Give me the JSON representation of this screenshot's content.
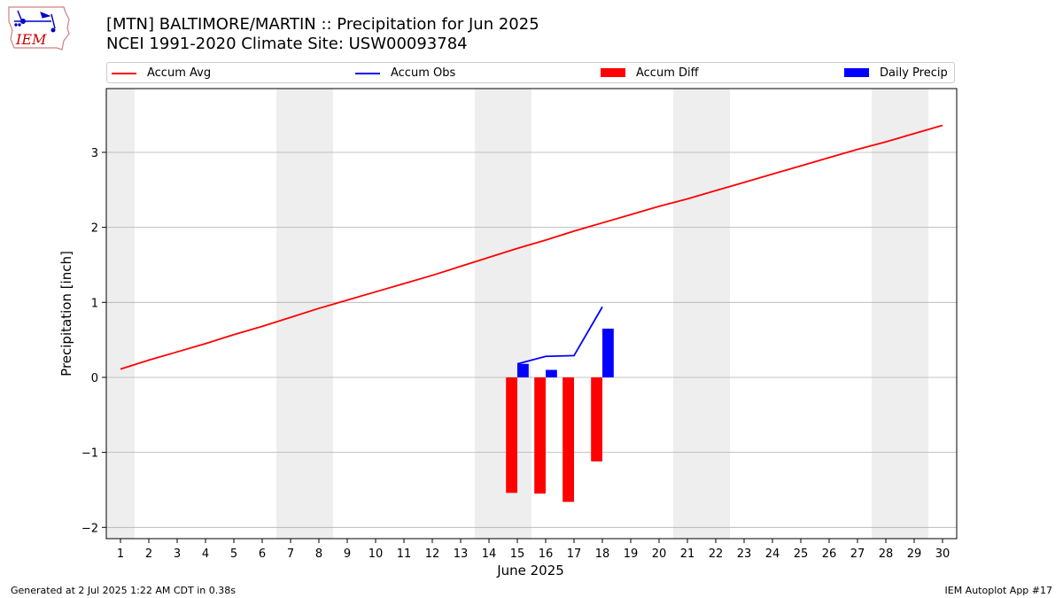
{
  "header": {
    "title_line1": "[MTN] BALTIMORE/MARTIN :: Precipitation for Jun 2025",
    "title_line2": "NCEI 1991-2020 Climate Site: USW00093784"
  },
  "logo": {
    "text": "IEM",
    "icon": "iem-iowa-logo"
  },
  "footer": {
    "left": "Generated at 2 Jul 2025 1:22 AM CDT in 0.38s",
    "right": "IEM Autoplot App #17"
  },
  "colors": {
    "avg": "#ff0000",
    "obs": "#0000ff",
    "diff": "#ff0000",
    "daily": "#0000ff",
    "weekend": "#eeeeee",
    "grid": "#b0b0b0"
  },
  "chart_data": {
    "type": "bar",
    "xlabel": "June 2025",
    "ylabel": "Precipitation [inch]",
    "xlim": [
      0.5,
      30.5
    ],
    "ylim": [
      -2.15,
      3.85
    ],
    "yticks": [
      -2,
      -1,
      0,
      1,
      2,
      3
    ],
    "ytick_labels": [
      "−2",
      "−1",
      "0",
      "1",
      "2",
      "3"
    ],
    "x_ticks": [
      1,
      2,
      3,
      4,
      5,
      6,
      7,
      8,
      9,
      10,
      11,
      12,
      13,
      14,
      15,
      16,
      17,
      18,
      19,
      20,
      21,
      22,
      23,
      24,
      25,
      26,
      27,
      28,
      29,
      30
    ],
    "x_tick_labels": [
      "1",
      "2",
      "3",
      "4",
      "5",
      "6",
      "7",
      "8",
      "9",
      "10",
      "11",
      "12",
      "13",
      "14",
      "15",
      "16",
      "17",
      "18",
      "19",
      "20",
      "21",
      "22",
      "23",
      "24",
      "25",
      "26",
      "27",
      "28",
      "29",
      "30"
    ],
    "grid": "horizontal",
    "legend_position": "top",
    "weekend_shading": [
      [
        0.5,
        1.5
      ],
      [
        6.5,
        8.5
      ],
      [
        13.5,
        15.5
      ],
      [
        20.5,
        22.5
      ],
      [
        27.5,
        29.5
      ]
    ],
    "series": [
      {
        "name": "Accum Avg",
        "kind": "line",
        "x": [
          1,
          2,
          3,
          4,
          5,
          6,
          7,
          8,
          9,
          10,
          11,
          12,
          13,
          14,
          15,
          16,
          17,
          18,
          19,
          20,
          21,
          22,
          23,
          24,
          25,
          26,
          27,
          28,
          29,
          30
        ],
        "values": [
          0.11,
          0.23,
          0.34,
          0.45,
          0.57,
          0.68,
          0.8,
          0.92,
          1.03,
          1.14,
          1.25,
          1.36,
          1.48,
          1.6,
          1.72,
          1.83,
          1.95,
          2.06,
          2.17,
          2.28,
          2.38,
          2.49,
          2.6,
          2.71,
          2.82,
          2.93,
          3.04,
          3.14,
          3.25,
          3.36
        ]
      },
      {
        "name": "Accum Obs",
        "kind": "line",
        "x": [
          15,
          16,
          17,
          18
        ],
        "values": [
          0.18,
          0.28,
          0.29,
          0.94
        ]
      },
      {
        "name": "Accum Diff",
        "kind": "bar",
        "x": [
          15,
          16,
          17,
          18
        ],
        "values": [
          -1.54,
          -1.55,
          -1.66,
          -1.12
        ]
      },
      {
        "name": "Daily Precip",
        "kind": "bar",
        "x": [
          15,
          16,
          17,
          18
        ],
        "values": [
          0.18,
          0.1,
          0.0,
          0.65
        ]
      }
    ]
  }
}
